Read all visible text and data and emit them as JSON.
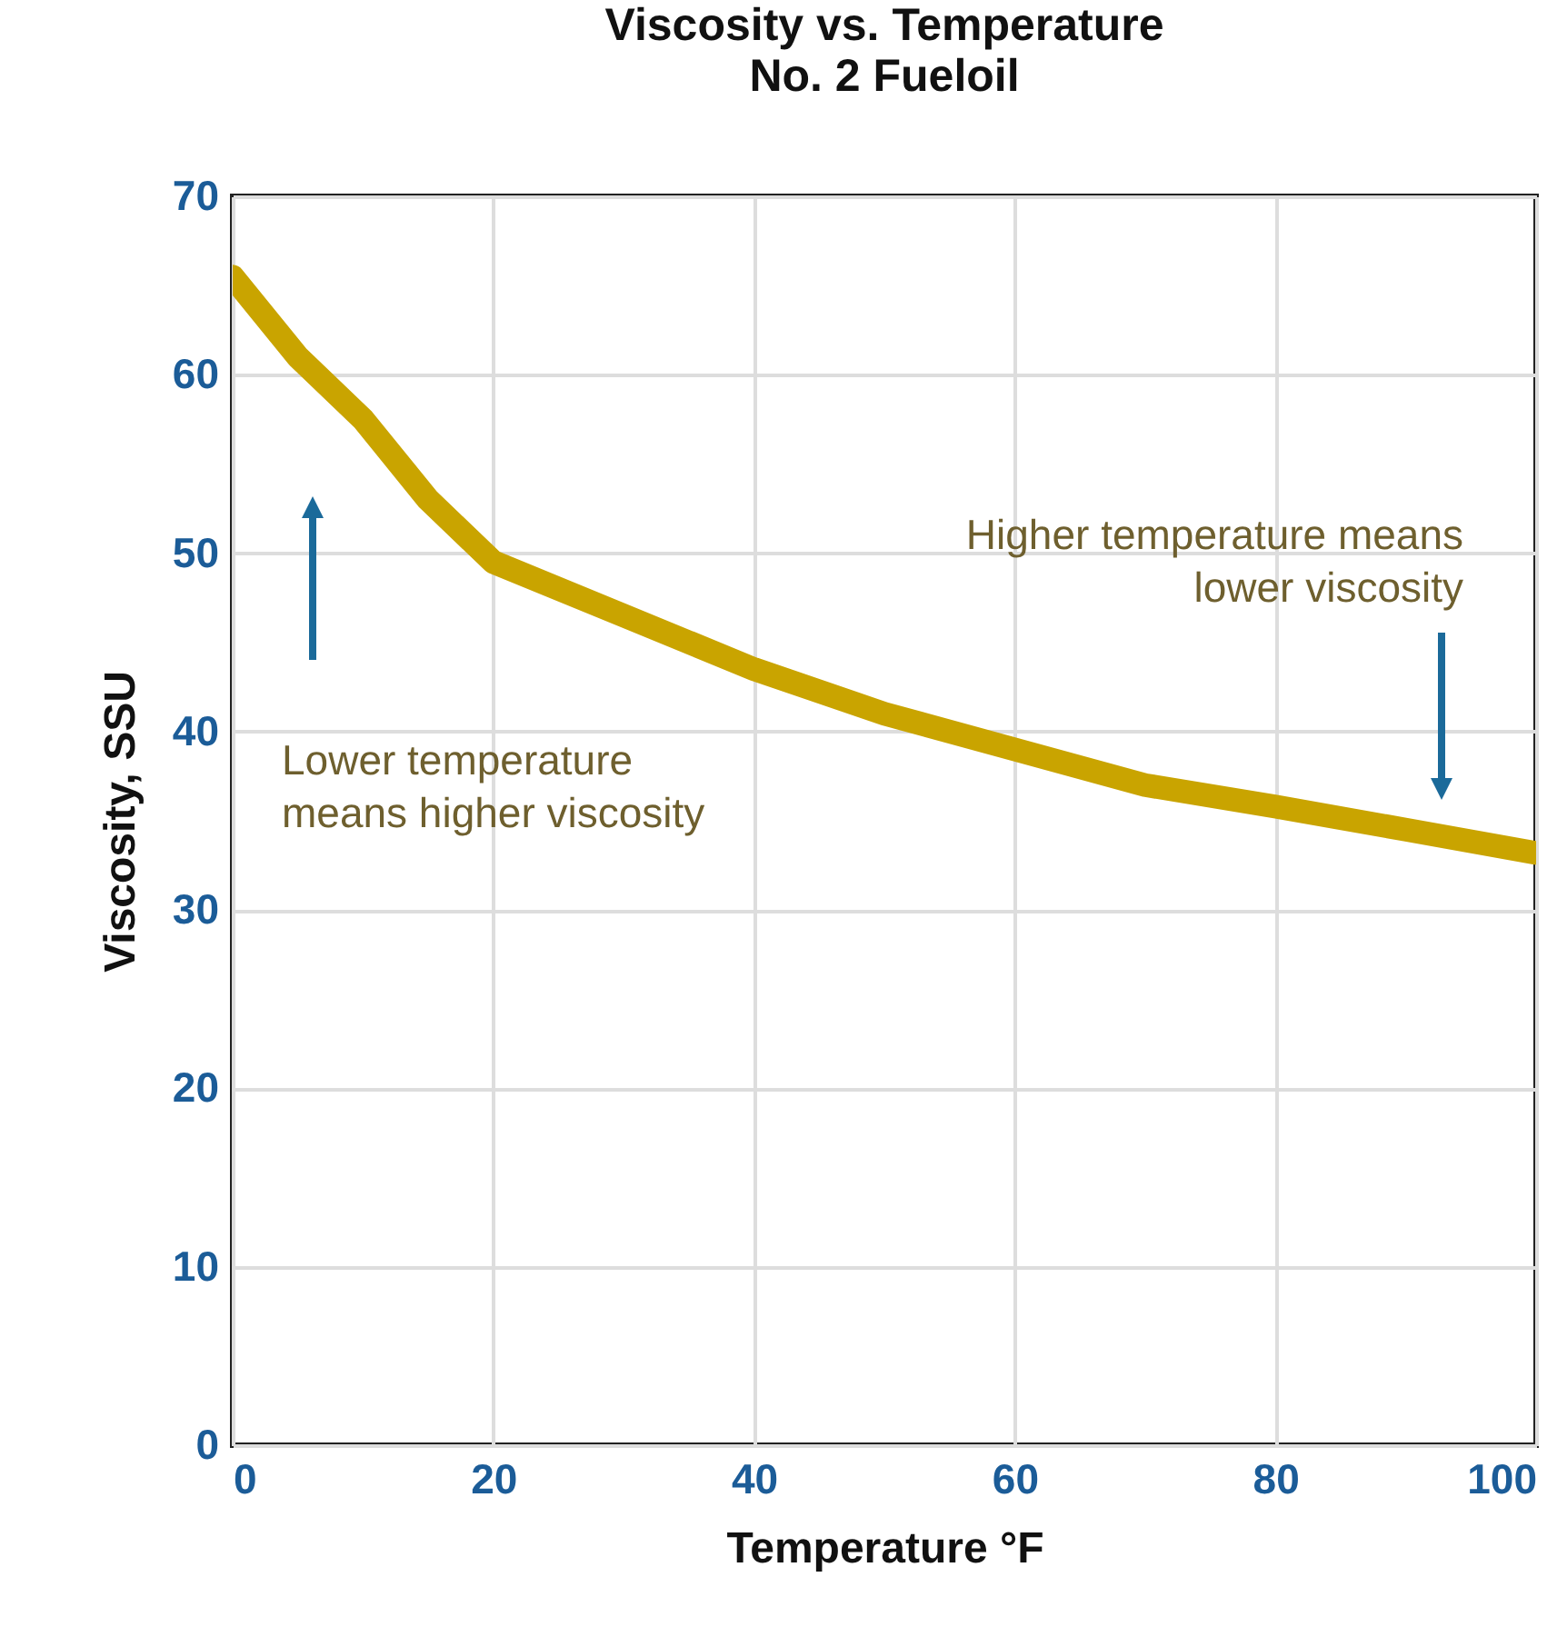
{
  "chart_data": {
    "type": "line",
    "title": "Viscosity vs. Temperature",
    "subtitle": "No. 2 Fueloil",
    "xlabel": "Temperature °F",
    "ylabel": "Viscosity, SSU",
    "x": [
      0,
      5,
      10,
      15,
      20,
      30,
      40,
      50,
      60,
      70,
      80,
      90,
      100
    ],
    "series": [
      {
        "color": "#c9a400",
        "values": [
          65.5,
          61,
          57.5,
          53,
          49.5,
          46.5,
          43.5,
          41,
          39,
          37,
          35.8,
          34.5,
          33.2
        ]
      }
    ],
    "xlim": [
      0,
      100
    ],
    "xticks": [
      0,
      20,
      40,
      60,
      80,
      100
    ],
    "ylim": [
      0,
      70
    ],
    "yticks": [
      0,
      10,
      20,
      30,
      40,
      50,
      60,
      70
    ],
    "grid": true,
    "line_style": "solid",
    "annotations": [
      "Lower temperature means higher viscosity",
      "Higher temperature means lower viscosity"
    ]
  }
}
